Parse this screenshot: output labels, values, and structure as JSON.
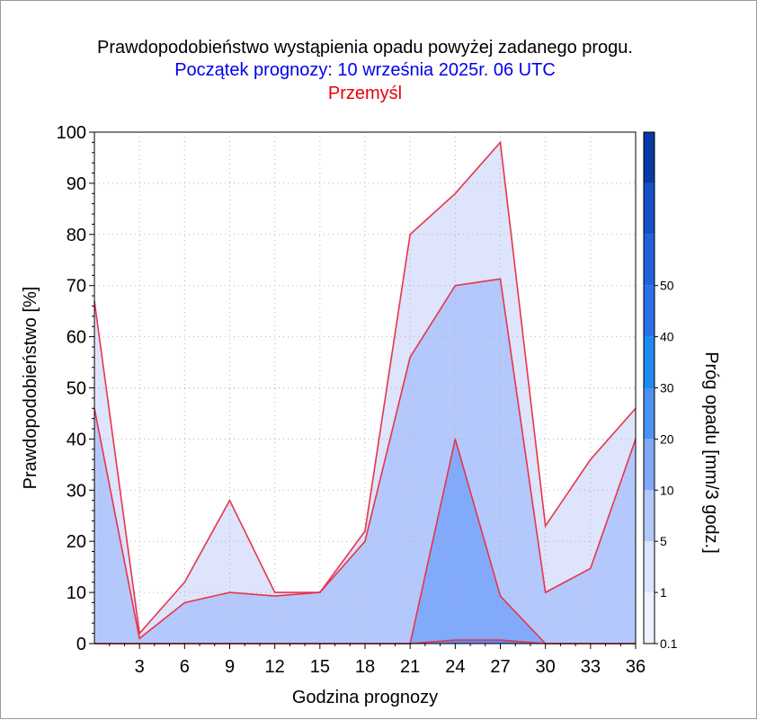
{
  "header": {
    "title": "Prawdopodobieństwo wystąpienia opadu powyżej zadanego progu.",
    "subtitle": "Początek prognozy: 10 września 2025r. 06 UTC",
    "location": "Przemyśl"
  },
  "colors": {
    "subtitle": "#0000ee",
    "location": "#e8000b",
    "outline": "#e8344a",
    "grid": "#b4b4b4"
  },
  "chart_data": {
    "type": "area",
    "title": "Prawdopodobieństwo wystąpienia opadu powyżej zadanego progu.",
    "xlabel": "Godzina prognozy",
    "ylabel": "Prawdopodobieństwo [%]",
    "x": [
      0,
      3,
      6,
      9,
      12,
      15,
      18,
      21,
      24,
      27,
      30,
      33,
      36
    ],
    "xticks": [
      3,
      6,
      9,
      12,
      15,
      18,
      21,
      24,
      27,
      30,
      33,
      36
    ],
    "xlim": [
      0,
      36
    ],
    "yticks": [
      0,
      10,
      20,
      30,
      40,
      50,
      60,
      70,
      80,
      90,
      100
    ],
    "ylim": [
      0,
      100
    ],
    "grid": true,
    "series": [
      {
        "threshold": 0.1,
        "color": "#dde4fb",
        "values": [
          67,
          2,
          12,
          28,
          10,
          10,
          22,
          80,
          88,
          98,
          23,
          36,
          46
        ]
      },
      {
        "threshold": 1,
        "color": "#b4c8fb",
        "values": [
          46,
          1,
          8,
          10,
          9.3,
          10,
          20,
          56,
          70,
          71.3,
          10,
          14.7,
          40
        ]
      },
      {
        "threshold": 5,
        "color": "#82aafa",
        "values": [
          0,
          0,
          0,
          0,
          0,
          0,
          0,
          0,
          40,
          9.3,
          0,
          0,
          0
        ]
      },
      {
        "threshold": 10,
        "color": "#5a8cf5",
        "values": [
          0,
          0,
          0,
          0,
          0,
          0,
          0,
          0,
          0.7,
          0.7,
          0,
          0,
          0
        ]
      }
    ],
    "colorbar": {
      "label": "Próg opadu [mm/3 godz.]",
      "tick_labels": [
        "0.1",
        "1",
        "5",
        "10",
        "20",
        "30",
        "40",
        "50"
      ],
      "bands": [
        "#eef1fd",
        "#dde4fb",
        "#b4c8fb",
        "#82aafa",
        "#4a92f5",
        "#1e8af0",
        "#2a72e8",
        "#1f62da",
        "#1550c8",
        "#0a3aa8"
      ]
    }
  }
}
